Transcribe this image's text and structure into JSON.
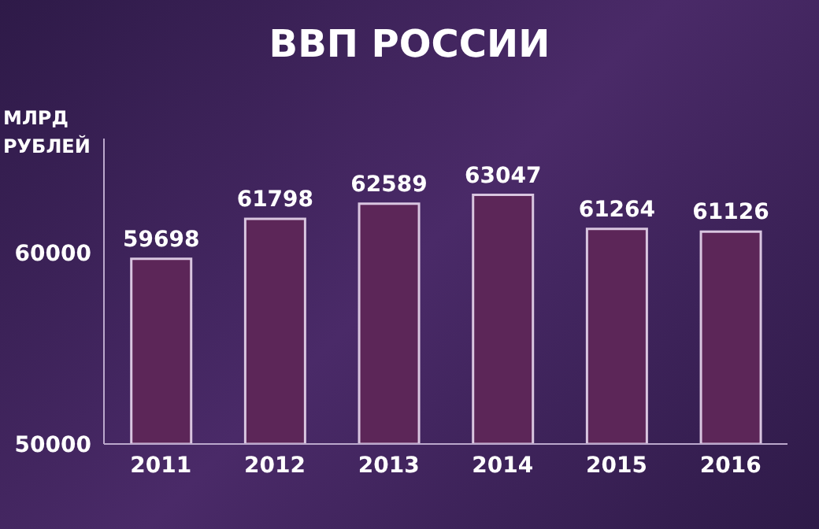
{
  "chart_data": {
    "type": "bar",
    "title": "ВВП РОССИИ",
    "ylabel": "МЛРД РУБЛЕЙ",
    "categories": [
      "2011",
      "2012",
      "2013",
      "2014",
      "2015",
      "2016"
    ],
    "values": [
      59698,
      61798,
      62589,
      63047,
      61264,
      61126
    ],
    "color": "#5c2658",
    "ylim": [
      50000,
      66000
    ],
    "yticks": [
      50000,
      60000
    ],
    "grid": false,
    "data_labels": true
  }
}
